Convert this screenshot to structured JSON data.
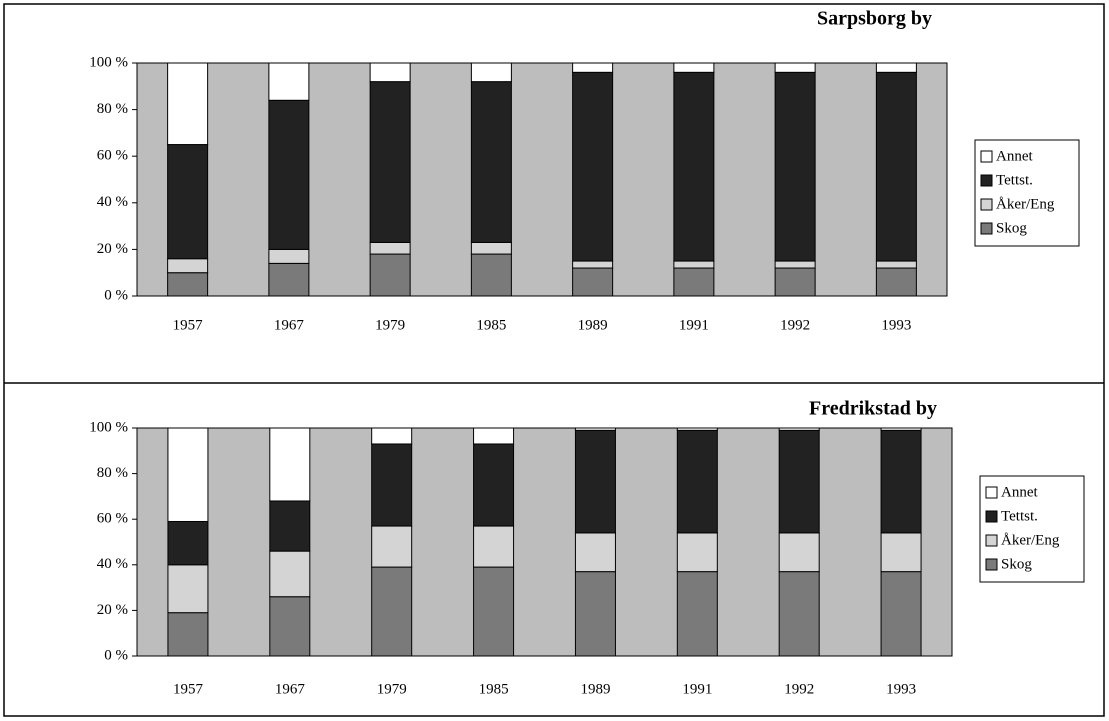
{
  "chart_data": [
    {
      "type": "stacked_bar",
      "title": "Sarpsborg by",
      "categories": [
        "1957",
        "1967",
        "1979",
        "1985",
        "1989",
        "1991",
        "1992",
        "1993"
      ],
      "series": [
        {
          "name": "Skog",
          "color": "#7a7a7a",
          "values": [
            10,
            14,
            18,
            18,
            12,
            12,
            12,
            12
          ]
        },
        {
          "name": "Åker/Eng",
          "color": "#d4d4d4",
          "values": [
            6,
            6,
            5,
            5,
            3,
            3,
            3,
            3
          ]
        },
        {
          "name": "Tettst.",
          "color": "#222222",
          "values": [
            49,
            64,
            69,
            69,
            81,
            81,
            81,
            81
          ]
        },
        {
          "name": "Annet",
          "color": "#ffffff",
          "values": [
            35,
            16,
            8,
            8,
            4,
            4,
            4,
            4
          ]
        }
      ],
      "ylim": [
        0,
        100
      ],
      "yticks": [
        {
          "value": 0,
          "label": "0 %"
        },
        {
          "value": 20,
          "label": "20 %"
        },
        {
          "value": 40,
          "label": "40 %"
        },
        {
          "value": 60,
          "label": "60 %"
        },
        {
          "value": 80,
          "label": "80 %"
        },
        {
          "value": 100,
          "label": "100 %"
        }
      ],
      "plot_background": "#bdbdbd",
      "legend": "right"
    },
    {
      "type": "stacked_bar",
      "title": "Fredrikstad by",
      "categories": [
        "1957",
        "1967",
        "1979",
        "1985",
        "1989",
        "1991",
        "1992",
        "1993"
      ],
      "series": [
        {
          "name": "Skog",
          "color": "#7a7a7a",
          "values": [
            19,
            26,
            39,
            39,
            37,
            37,
            37,
            37
          ]
        },
        {
          "name": "Åker/Eng",
          "color": "#d4d4d4",
          "values": [
            21,
            20,
            18,
            18,
            17,
            17,
            17,
            17
          ]
        },
        {
          "name": "Tettst.",
          "color": "#222222",
          "values": [
            19,
            22,
            36,
            36,
            45,
            45,
            45,
            45
          ]
        },
        {
          "name": "Annet",
          "color": "#ffffff",
          "values": [
            41,
            32,
            7,
            7,
            1,
            1,
            1,
            1
          ]
        }
      ],
      "ylim": [
        0,
        100
      ],
      "yticks": [
        {
          "value": 0,
          "label": "0 %"
        },
        {
          "value": 20,
          "label": "20 %"
        },
        {
          "value": 40,
          "label": "40 %"
        },
        {
          "value": 60,
          "label": "60 %"
        },
        {
          "value": 80,
          "label": "80 %"
        },
        {
          "value": 100,
          "label": "100 %"
        }
      ],
      "plot_background": "#bdbdbd",
      "legend": "right"
    }
  ]
}
